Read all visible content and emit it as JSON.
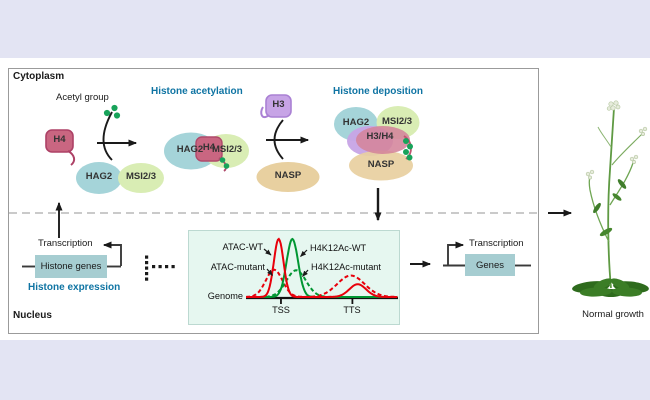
{
  "figure": {
    "region_top_left": "Cytoplasm",
    "region_bottom_left": "Nucleus",
    "result_label": "Normal growth"
  },
  "labels": {
    "acetyl_group": "Acetyl group",
    "histone_acetylation": "Histone acetylation",
    "histone_deposition": "Histone deposition",
    "histone_expression": "Histone expression",
    "transcription_left": "Transcription",
    "transcription_right": "Transcription",
    "histone_genes": "Histone genes",
    "genes": "Genes"
  },
  "proteins": {
    "h4": "H4",
    "h3": "H3",
    "hag2": "HAG2",
    "msi23": "MSI2/3",
    "nasp": "NASP",
    "h3h4": "H3/H4"
  },
  "colors": {
    "accent_heading": "#0f74a3",
    "background_band": "#e3e4f3",
    "gene_box": "#a6cdd1",
    "hag2_fill": "#a5d4d9",
    "msi23_fill": "#d9edb4",
    "nasp_fill": "#e8d0a0",
    "h4_fill": "#c96681",
    "h3_fill": "#c7a4e6",
    "acetyl_dot": "#18a35a",
    "chart_bg": "#e6f7f0"
  },
  "chart_data": {
    "type": "line",
    "axis_label": "Genome",
    "x_ticks": [
      "TSS",
      "TTS"
    ],
    "tick_positions": [
      0.23,
      0.7
    ],
    "x_range": [
      0,
      1
    ],
    "ylim": [
      0,
      1.05
    ],
    "grid": false,
    "legend_position": "inside-top",
    "series": [
      {
        "name": "ATAC-WT",
        "color": "#e8000b",
        "dash": "solid",
        "peaks": [
          {
            "center": 0.215,
            "height": 1.0,
            "width": 0.032
          },
          {
            "center": 0.735,
            "height": 0.22,
            "width": 0.055
          }
        ]
      },
      {
        "name": "ATAC-mutant",
        "color": "#e8000b",
        "dash": "dashed",
        "peaks": [
          {
            "center": 0.185,
            "height": 0.47,
            "width": 0.055
          },
          {
            "center": 0.69,
            "height": 0.37,
            "width": 0.09
          }
        ]
      },
      {
        "name": "H4K12Ac-WT",
        "color": "#009632",
        "dash": "solid",
        "peaks": [
          {
            "center": 0.305,
            "height": 1.0,
            "width": 0.038
          }
        ]
      },
      {
        "name": "H4K12Ac-mutant",
        "color": "#009632",
        "dash": "dashed",
        "peaks": [
          {
            "center": 0.33,
            "height": 0.46,
            "width": 0.065
          }
        ]
      }
    ]
  }
}
